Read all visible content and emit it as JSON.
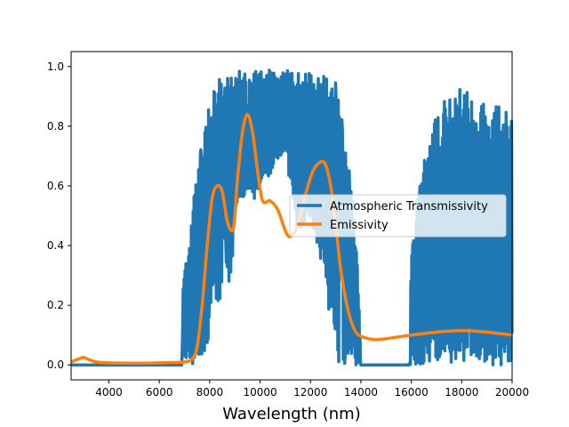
{
  "chart_data": {
    "type": "line",
    "title": "",
    "xlabel": "Wavelength (nm)",
    "ylabel": "",
    "xlim": [
      2500,
      20000
    ],
    "ylim": [
      -0.05,
      1.05
    ],
    "xticks": [
      4000,
      6000,
      8000,
      10000,
      12000,
      14000,
      16000,
      18000,
      20000
    ],
    "yticks": [
      0.0,
      0.2,
      0.4,
      0.6,
      0.8,
      1.0
    ],
    "xtick_labels": [
      "4000",
      "6000",
      "8000",
      "10000",
      "12000",
      "14000",
      "16000",
      "18000",
      "20000"
    ],
    "ytick_labels": [
      "0.0",
      "0.2",
      "0.4",
      "0.6",
      "0.8",
      "1.0"
    ],
    "grid": false,
    "legend_position": "center-right",
    "series": [
      {
        "name": "Atmospheric Transmissivity",
        "color": "#1f77b4",
        "style": "dense-oscillating",
        "envelope_x": [
          2500,
          6900,
          6950,
          7200,
          7400,
          7600,
          7800,
          8000,
          8200,
          8400,
          8600,
          8800,
          9000,
          9200,
          9500,
          9800,
          10000,
          10500,
          11000,
          11500,
          12000,
          12500,
          13000,
          13300,
          13500,
          13700,
          13900,
          14000,
          15000,
          15900,
          16000,
          16300,
          16600,
          17000,
          17400,
          17800,
          18200,
          18600,
          19000,
          19400,
          19800,
          20000
        ],
        "envelope_hi": [
          0.0,
          0.0,
          0.3,
          0.4,
          0.6,
          0.7,
          0.8,
          0.9,
          0.95,
          0.98,
          0.98,
          0.99,
          0.99,
          0.99,
          0.99,
          0.99,
          0.99,
          0.99,
          0.99,
          0.98,
          0.98,
          0.97,
          0.95,
          0.8,
          0.7,
          0.5,
          0.3,
          0.0,
          0.0,
          0.0,
          0.4,
          0.6,
          0.75,
          0.85,
          0.9,
          0.93,
          0.92,
          0.9,
          0.88,
          0.87,
          0.86,
          0.83
        ],
        "envelope_lo": [
          0.0,
          0.0,
          0.0,
          0.0,
          0.0,
          0.0,
          0.05,
          0.1,
          0.2,
          0.2,
          0.4,
          0.2,
          0.5,
          0.5,
          0.6,
          0.55,
          0.6,
          0.65,
          0.7,
          0.45,
          0.5,
          0.3,
          0.0,
          0.0,
          0.0,
          0.0,
          0.0,
          0.0,
          0.0,
          0.0,
          0.0,
          0.0,
          0.0,
          0.0,
          0.0,
          0.0,
          0.0,
          0.0,
          0.0,
          0.0,
          0.0,
          0.0
        ]
      },
      {
        "name": "Emissivity",
        "color": "#ff7f0e",
        "x": [
          2500,
          2800,
          3000,
          3200,
          3500,
          4000,
          5000,
          6000,
          6500,
          7000,
          7300,
          7500,
          7700,
          7900,
          8100,
          8300,
          8500,
          8700,
          8900,
          9000,
          9100,
          9300,
          9500,
          9700,
          9900,
          10100,
          10400,
          10700,
          11000,
          11200,
          11500,
          11800,
          12100,
          12400,
          12600,
          12800,
          13000,
          13200,
          13500,
          13800,
          14200,
          14600,
          15000,
          16000,
          17000,
          18000,
          19000,
          20000
        ],
        "values": [
          0.01,
          0.02,
          0.025,
          0.018,
          0.01,
          0.007,
          0.006,
          0.007,
          0.008,
          0.01,
          0.02,
          0.06,
          0.2,
          0.4,
          0.56,
          0.6,
          0.58,
          0.48,
          0.45,
          0.5,
          0.62,
          0.78,
          0.84,
          0.78,
          0.65,
          0.55,
          0.55,
          0.52,
          0.45,
          0.43,
          0.47,
          0.57,
          0.65,
          0.68,
          0.67,
          0.6,
          0.47,
          0.32,
          0.18,
          0.11,
          0.09,
          0.085,
          0.088,
          0.1,
          0.11,
          0.115,
          0.11,
          0.1
        ]
      }
    ]
  }
}
